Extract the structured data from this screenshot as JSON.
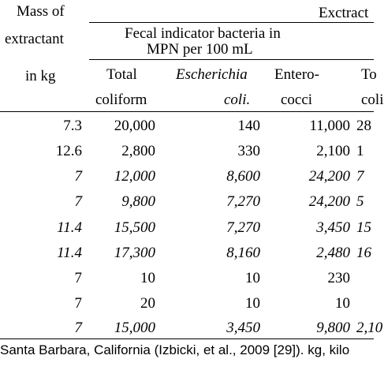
{
  "header": {
    "mass_col": [
      "Mass of",
      "extractant",
      "in kg"
    ],
    "group_label": "Exctract",
    "subgroup_label": [
      "Fecal indicator bacteria in",
      "MPN per 100 mL"
    ],
    "columns": [
      {
        "line1": "Total",
        "line2": "coliform",
        "italic": false
      },
      {
        "line1": "Escherichia",
        "line2": "coli.",
        "italic": true
      },
      {
        "line1": "Entero-",
        "line2": "cocci",
        "italic": false
      },
      {
        "line1": "To",
        "line2": "coli",
        "italic": false
      }
    ]
  },
  "rows": [
    {
      "mass": "7.3",
      "total": "20,000",
      "ecoli": "140",
      "entero": "11,000",
      "next": "28",
      "italic": false
    },
    {
      "mass": "12.6",
      "total": "2,800",
      "ecoli": "330",
      "entero": "2,100",
      "next": "1",
      "italic": false
    },
    {
      "mass": "7",
      "total": "12,000",
      "ecoli": "8,600",
      "entero": "24,200",
      "next": "7",
      "italic": true
    },
    {
      "mass": "7",
      "total": "9,800",
      "ecoli": "7,270",
      "entero": "24,200",
      "next": "5",
      "italic": true
    },
    {
      "mass": "11.4",
      "total": "15,500",
      "ecoli": "7,270",
      "entero": "3,450",
      "next": "15",
      "italic": true
    },
    {
      "mass": "11.4",
      "total": "17,300",
      "ecoli": "8,160",
      "entero": "2,480",
      "next": "16",
      "italic": true
    },
    {
      "mass": "7",
      "total": "10",
      "ecoli": "10",
      "entero": "230",
      "next": "",
      "italic": false
    },
    {
      "mass": "7",
      "total": "20",
      "ecoli": "10",
      "entero": "10",
      "next": "",
      "italic": false
    },
    {
      "mass": "7",
      "total": "15,000",
      "ecoli": "3,450",
      "entero": "9,800",
      "next": "2,10",
      "italic": true
    }
  ],
  "caption": "Santa Barbara, California (Izbicki, et al., 2009 [29]). kg, kilo"
}
